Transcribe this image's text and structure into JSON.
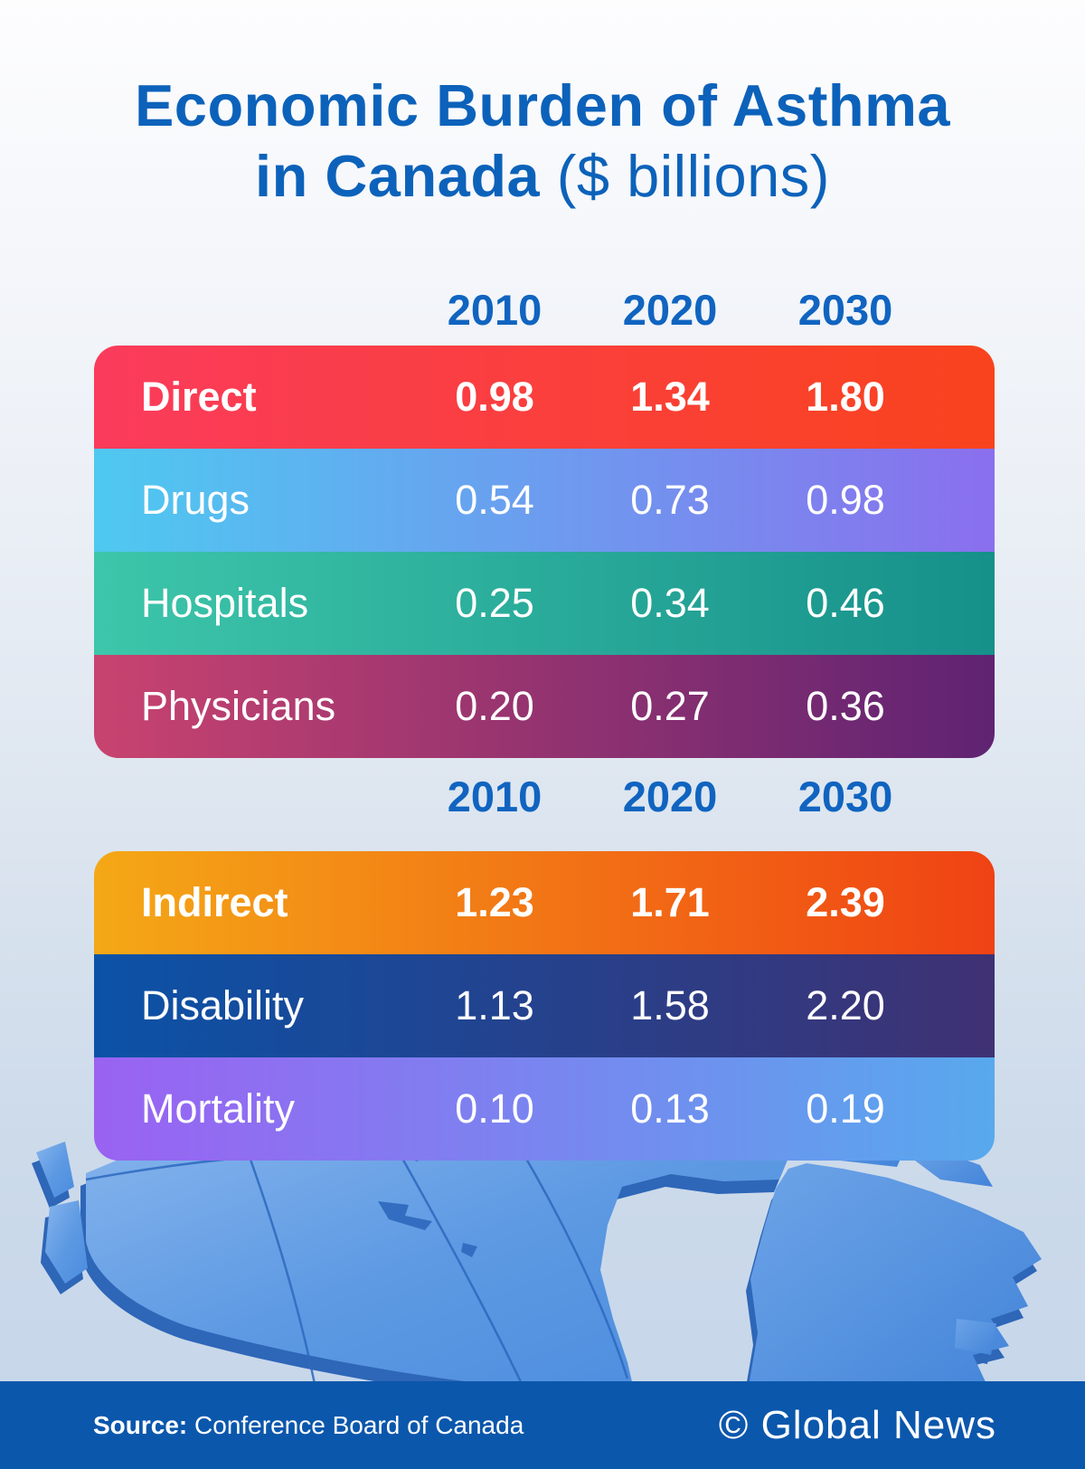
{
  "title": {
    "line1": "Economic Burden of Asthma",
    "line2_bold": "in Canada",
    "line2_light": " ($ billions)"
  },
  "chart_data": {
    "type": "table",
    "title": "Economic Burden of Asthma in Canada ($ billions)",
    "columns": [
      "2010",
      "2020",
      "2030"
    ],
    "groups": [
      {
        "name": "Direct",
        "rows": [
          {
            "label": "Direct",
            "values": [
              0.98,
              1.34,
              1.8
            ]
          },
          {
            "label": "Drugs",
            "values": [
              0.54,
              0.73,
              0.98
            ]
          },
          {
            "label": "Hospitals",
            "values": [
              0.25,
              0.34,
              0.46
            ]
          },
          {
            "label": "Physicians",
            "values": [
              0.2,
              0.27,
              0.36
            ]
          }
        ]
      },
      {
        "name": "Indirect",
        "rows": [
          {
            "label": "Indirect",
            "values": [
              1.23,
              1.71,
              2.39
            ]
          },
          {
            "label": "Disability",
            "values": [
              1.13,
              1.58,
              2.2
            ]
          },
          {
            "label": "Mortality",
            "values": [
              0.1,
              0.13,
              0.19
            ]
          }
        ]
      }
    ]
  },
  "tables": [
    {
      "years": [
        "2010",
        "2020",
        "2030"
      ],
      "rows": [
        {
          "label": "Direct",
          "values": [
            "0.98",
            "1.34",
            "1.80"
          ],
          "bold": true,
          "gradient": [
            "#FB3B5C",
            "#F9431D"
          ]
        },
        {
          "label": "Drugs",
          "values": [
            "0.54",
            "0.73",
            "0.98"
          ],
          "bold": false,
          "gradient": [
            "#4EC9F0",
            "#8A6FEE"
          ]
        },
        {
          "label": "Hospitals",
          "values": [
            "0.25",
            "0.34",
            "0.46"
          ],
          "bold": false,
          "gradient": [
            "#3DC6AA",
            "#16908A"
          ]
        },
        {
          "label": "Physicians",
          "values": [
            "0.20",
            "0.27",
            "0.36"
          ],
          "bold": false,
          "gradient": [
            "#C8436F",
            "#5F2372"
          ]
        }
      ]
    },
    {
      "years": [
        "2010",
        "2020",
        "2030"
      ],
      "rows": [
        {
          "label": "Indirect",
          "values": [
            "1.23",
            "1.71",
            "2.39"
          ],
          "bold": true,
          "gradient": [
            "#F4A816",
            "#F04214"
          ]
        },
        {
          "label": "Disability",
          "values": [
            "1.13",
            "1.58",
            "2.20"
          ],
          "bold": false,
          "gradient": [
            "#0B52A7",
            "#3F3173"
          ]
        },
        {
          "label": "Mortality",
          "values": [
            "0.10",
            "0.13",
            "0.19"
          ],
          "bold": false,
          "gradient": [
            "#9A62F2",
            "#58A9ED"
          ]
        }
      ]
    }
  ],
  "footer": {
    "source_label": "Source:",
    "source_text": " Conference Board of Canada",
    "credit": "© Global News"
  },
  "colors": {
    "title_blue": "#0c62ba",
    "year_blue": "#1064c0",
    "footer_blue": "#0b57ac",
    "map_land_light": "#83b3ec",
    "map_land_dark": "#4b8cde",
    "map_side": "#2e66b8",
    "map_border_line": "#2d68be",
    "background_top": "#fdfdfe",
    "background_bottom": "#c7d7ea"
  }
}
